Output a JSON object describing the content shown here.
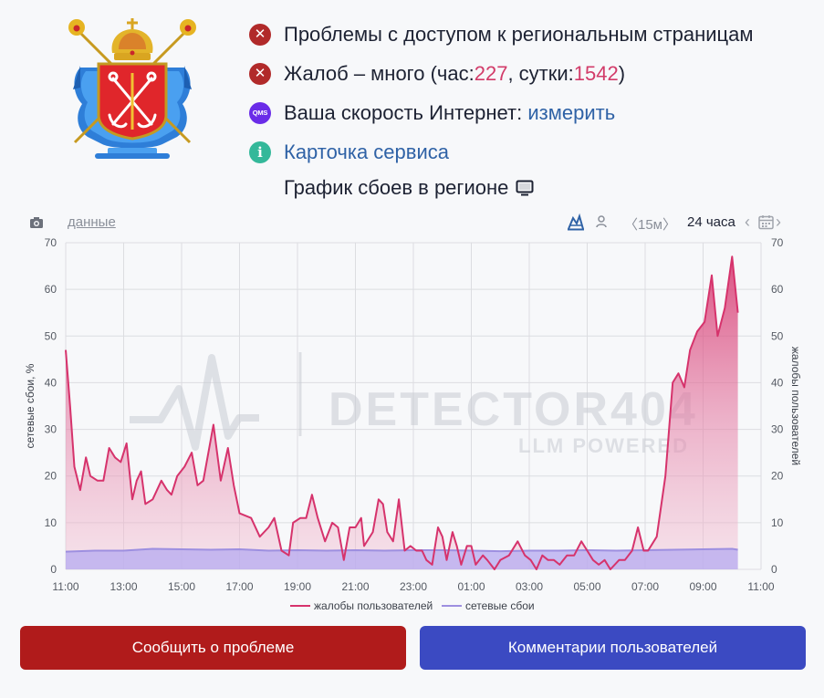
{
  "status": {
    "access_problem": "Проблемы с доступом к региональным страницам",
    "complaints_prefix": "Жалоб – много (час: ",
    "complaints_hour": "227",
    "complaints_mid": ", сутки: ",
    "complaints_day": "1542",
    "complaints_suffix": ")",
    "speed_label": "Ваша скорость Интернет: ",
    "speed_link": "измерить",
    "service_card": "Карточка сервиса",
    "qms_badge": "QMS",
    "info_badge": "i"
  },
  "chart_heading": "График сбоев в регионе",
  "toolbar": {
    "data_link": "данные",
    "period_15m": "〈15м〉",
    "period_24h": "24 часа",
    "prev": "‹",
    "next": "›"
  },
  "colors": {
    "complaints": "#d6336c",
    "outages": "#9d8fe0",
    "report_button": "#b01b1b",
    "comments_button": "#3b4ac2"
  },
  "chart_data": {
    "type": "area",
    "watermark": [
      "DETECTOR404",
      "LLM POWERED"
    ],
    "ylabel_left": "сетевые сбои, %",
    "ylabel_right": "жалобы пользователей",
    "ylim": [
      0,
      70
    ],
    "yticks": [
      0,
      10,
      20,
      30,
      40,
      50,
      60,
      70
    ],
    "xlim": [
      11,
      35
    ],
    "xticks": [
      {
        "x": 11,
        "label": "11:00"
      },
      {
        "x": 13,
        "label": "13:00"
      },
      {
        "x": 15,
        "label": "15:00"
      },
      {
        "x": 17,
        "label": "17:00"
      },
      {
        "x": 19,
        "label": "19:00"
      },
      {
        "x": 21,
        "label": "21:00"
      },
      {
        "x": 23,
        "label": "23:00"
      },
      {
        "x": 25,
        "label": "01:00"
      },
      {
        "x": 27,
        "label": "03:00"
      },
      {
        "x": 29,
        "label": "05:00"
      },
      {
        "x": 31,
        "label": "07:00"
      },
      {
        "x": 33,
        "label": "09:00"
      },
      {
        "x": 35,
        "label": "11:00"
      }
    ],
    "grid": true,
    "legend_position": "bottom",
    "series": [
      {
        "name": "жалобы пользователей",
        "color": "#d6336c",
        "points": [
          [
            11.0,
            47
          ],
          [
            11.15,
            35
          ],
          [
            11.3,
            22
          ],
          [
            11.5,
            17
          ],
          [
            11.7,
            24
          ],
          [
            11.85,
            20
          ],
          [
            12.1,
            19
          ],
          [
            12.3,
            19
          ],
          [
            12.5,
            26
          ],
          [
            12.7,
            24
          ],
          [
            12.9,
            23
          ],
          [
            13.1,
            27
          ],
          [
            13.3,
            15
          ],
          [
            13.45,
            19
          ],
          [
            13.6,
            21
          ],
          [
            13.75,
            14
          ],
          [
            14.0,
            15
          ],
          [
            14.3,
            19
          ],
          [
            14.5,
            17
          ],
          [
            14.65,
            16
          ],
          [
            14.85,
            20
          ],
          [
            15.1,
            22
          ],
          [
            15.35,
            25
          ],
          [
            15.55,
            18
          ],
          [
            15.75,
            19
          ],
          [
            16.1,
            31
          ],
          [
            16.35,
            19
          ],
          [
            16.6,
            26
          ],
          [
            16.8,
            18
          ],
          [
            17.0,
            12
          ],
          [
            17.4,
            11
          ],
          [
            17.7,
            7
          ],
          [
            18.0,
            9
          ],
          [
            18.2,
            11
          ],
          [
            18.45,
            4
          ],
          [
            18.7,
            3
          ],
          [
            18.85,
            10
          ],
          [
            19.1,
            11
          ],
          [
            19.3,
            11
          ],
          [
            19.5,
            16
          ],
          [
            19.7,
            11
          ],
          [
            19.95,
            6
          ],
          [
            20.2,
            10
          ],
          [
            20.4,
            9
          ],
          [
            20.6,
            2
          ],
          [
            20.8,
            9
          ],
          [
            21.0,
            9
          ],
          [
            21.2,
            11
          ],
          [
            21.3,
            5
          ],
          [
            21.6,
            8
          ],
          [
            21.8,
            15
          ],
          [
            21.95,
            14
          ],
          [
            22.1,
            8
          ],
          [
            22.3,
            6
          ],
          [
            22.5,
            15
          ],
          [
            22.7,
            4
          ],
          [
            22.9,
            5
          ],
          [
            23.1,
            4
          ],
          [
            23.3,
            4
          ],
          [
            23.45,
            2
          ],
          [
            23.65,
            1
          ],
          [
            23.85,
            9
          ],
          [
            24.0,
            7
          ],
          [
            24.15,
            2
          ],
          [
            24.35,
            8
          ],
          [
            24.5,
            5
          ],
          [
            24.65,
            1
          ],
          [
            24.85,
            5
          ],
          [
            25.0,
            5
          ],
          [
            25.15,
            1
          ],
          [
            25.4,
            3
          ],
          [
            25.55,
            2
          ],
          [
            25.8,
            0
          ],
          [
            26.0,
            2
          ],
          [
            26.3,
            3
          ],
          [
            26.6,
            6
          ],
          [
            26.85,
            3
          ],
          [
            27.05,
            2
          ],
          [
            27.25,
            0
          ],
          [
            27.45,
            3
          ],
          [
            27.65,
            2
          ],
          [
            27.85,
            2
          ],
          [
            28.05,
            1
          ],
          [
            28.3,
            3
          ],
          [
            28.55,
            3
          ],
          [
            28.8,
            6
          ],
          [
            29.0,
            4
          ],
          [
            29.2,
            2
          ],
          [
            29.4,
            1
          ],
          [
            29.6,
            2
          ],
          [
            29.8,
            0
          ],
          [
            30.1,
            2
          ],
          [
            30.3,
            2
          ],
          [
            30.55,
            4
          ],
          [
            30.75,
            9
          ],
          [
            30.95,
            4
          ],
          [
            31.1,
            4
          ],
          [
            31.4,
            7
          ],
          [
            31.7,
            20
          ],
          [
            31.95,
            40
          ],
          [
            32.15,
            42
          ],
          [
            32.35,
            39
          ],
          [
            32.55,
            47
          ],
          [
            32.8,
            51
          ],
          [
            33.05,
            53
          ],
          [
            33.3,
            63
          ],
          [
            33.5,
            50
          ],
          [
            33.75,
            56
          ],
          [
            34.0,
            67
          ],
          [
            34.2,
            55
          ]
        ]
      },
      {
        "name": "сетевые сбои",
        "color": "#9d8fe0",
        "points": [
          [
            11.0,
            3.8
          ],
          [
            12.0,
            4.0
          ],
          [
            13.0,
            4.0
          ],
          [
            14.0,
            4.4
          ],
          [
            15.0,
            4.3
          ],
          [
            16.0,
            4.2
          ],
          [
            17.0,
            4.3
          ],
          [
            18.0,
            4.0
          ],
          [
            19.0,
            4.1
          ],
          [
            20.0,
            4.0
          ],
          [
            21.0,
            4.1
          ],
          [
            22.0,
            4.0
          ],
          [
            23.0,
            4.1
          ],
          [
            24.0,
            4.1
          ],
          [
            25.0,
            4.0
          ],
          [
            26.0,
            3.9
          ],
          [
            27.0,
            4.0
          ],
          [
            28.0,
            4.0
          ],
          [
            29.0,
            4.1
          ],
          [
            30.0,
            4.0
          ],
          [
            31.0,
            4.1
          ],
          [
            32.0,
            4.2
          ],
          [
            33.0,
            4.3
          ],
          [
            34.0,
            4.4
          ],
          [
            34.2,
            4.2
          ]
        ]
      }
    ]
  },
  "buttons": {
    "report": "Сообщить о проблеме",
    "comments": "Комментарии пользователей"
  }
}
